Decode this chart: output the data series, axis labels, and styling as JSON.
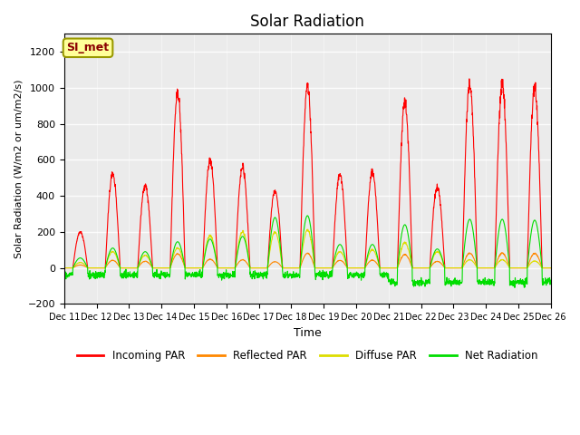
{
  "title": "Solar Radiation",
  "xlabel": "Time",
  "ylabel": "Solar Radiation (W/m2 or um/m2/s)",
  "ylim": [
    -200,
    1300
  ],
  "yticks": [
    -200,
    0,
    200,
    400,
    600,
    800,
    1000,
    1200
  ],
  "n_days": 15,
  "xtick_labels": [
    "Dec 11",
    "Dec 12",
    "Dec 13",
    "Dec 14",
    "Dec 15",
    "Dec 16",
    "Dec 17",
    "Dec 18",
    "Dec 19",
    "Dec 20",
    "Dec 21",
    "Dec 22",
    "Dec 23",
    "Dec 24",
    "Dec 25",
    "Dec 26"
  ],
  "site_label": "SI_met",
  "colors": {
    "incoming": "#ff0000",
    "reflected": "#ff8800",
    "diffuse": "#dddd00",
    "net": "#00dd00"
  },
  "legend_labels": [
    "Incoming PAR",
    "Reflected PAR",
    "Diffuse PAR",
    "Net Radiation"
  ],
  "plot_bg_color": "#ebebeb",
  "incoming_peaks": [
    200,
    520,
    460,
    970,
    600,
    560,
    430,
    1010,
    520,
    530,
    920,
    450,
    1020,
    1020,
    1000
  ],
  "diffuse_peaks": [
    30,
    90,
    70,
    110,
    180,
    200,
    200,
    210,
    90,
    100,
    140,
    90,
    45,
    45,
    38
  ],
  "net_peaks": [
    55,
    110,
    90,
    145,
    160,
    175,
    280,
    290,
    130,
    130,
    240,
    105,
    270,
    270,
    265
  ]
}
